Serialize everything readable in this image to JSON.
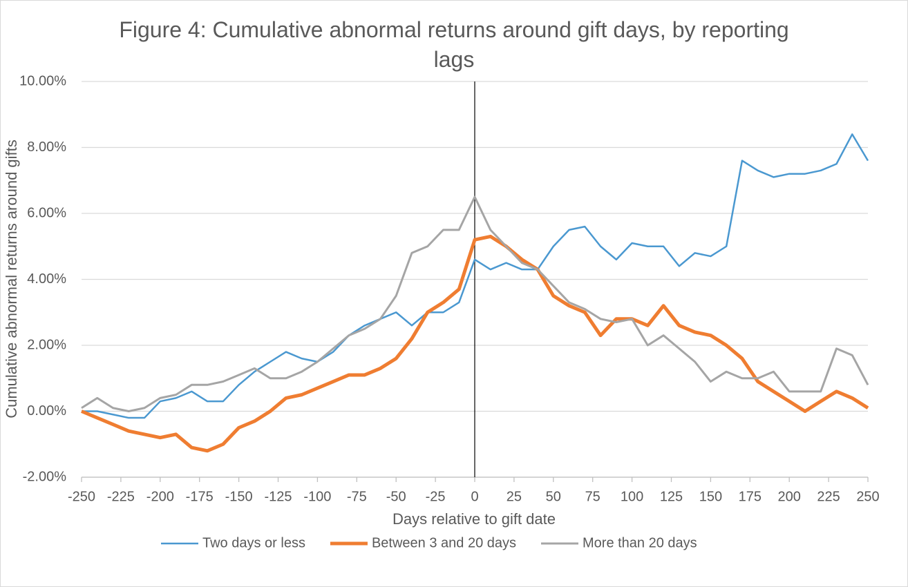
{
  "chart_data": {
    "type": "line",
    "title": "Figure 4:  Cumulative abnormal returns around gift days, by reporting lags",
    "xlabel": "Days relative to gift date",
    "ylabel": "Cumulative abnormal returns around gifts",
    "x": [
      -250,
      -240,
      -230,
      -220,
      -210,
      -200,
      -190,
      -180,
      -170,
      -160,
      -150,
      -140,
      -130,
      -120,
      -110,
      -100,
      -90,
      -80,
      -70,
      -60,
      -50,
      -40,
      -30,
      -20,
      -10,
      0,
      10,
      20,
      30,
      40,
      50,
      60,
      70,
      80,
      90,
      100,
      110,
      120,
      130,
      140,
      150,
      160,
      170,
      180,
      190,
      200,
      210,
      220,
      230,
      240,
      250
    ],
    "series": [
      {
        "name": "Two days or less",
        "color": "#4a98d0",
        "values": [
          0,
          0,
          -0.1,
          -0.2,
          -0.2,
          0.3,
          0.4,
          0.6,
          0.3,
          0.3,
          0.8,
          1.2,
          1.5,
          1.8,
          1.6,
          1.5,
          1.8,
          2.3,
          2.6,
          2.8,
          3.0,
          2.6,
          3.0,
          3.0,
          3.3,
          4.6,
          4.3,
          4.5,
          4.3,
          4.3,
          5.0,
          5.5,
          5.6,
          5.0,
          4.6,
          5.1,
          5.0,
          5.0,
          4.4,
          4.8,
          4.7,
          5.0,
          7.6,
          7.3,
          7.1,
          7.2,
          7.2,
          7.3,
          7.5,
          8.4,
          7.6
        ]
      },
      {
        "name": "Between 3 and 20 days",
        "color": "#ef7d31",
        "values": [
          0,
          -0.2,
          -0.4,
          -0.6,
          -0.7,
          -0.8,
          -0.7,
          -1.1,
          -1.2,
          -1.0,
          -0.5,
          -0.3,
          0,
          0.4,
          0.5,
          0.7,
          0.9,
          1.1,
          1.1,
          1.3,
          1.6,
          2.2,
          3.0,
          3.3,
          3.7,
          5.2,
          5.3,
          5.0,
          4.6,
          4.3,
          3.5,
          3.2,
          3.0,
          2.3,
          2.8,
          2.8,
          2.6,
          3.2,
          2.6,
          2.4,
          2.3,
          2.0,
          1.6,
          0.9,
          0.6,
          0.3,
          0.0,
          0.3,
          0.6,
          0.4,
          0.1
        ]
      },
      {
        "name": "More than 20 days",
        "color": "#a5a5a5",
        "values": [
          0.1,
          0.4,
          0.1,
          0,
          0.1,
          0.4,
          0.5,
          0.8,
          0.8,
          0.9,
          1.1,
          1.3,
          1.0,
          1.0,
          1.2,
          1.5,
          1.9,
          2.3,
          2.5,
          2.8,
          3.5,
          4.8,
          5.0,
          5.5,
          5.5,
          6.5,
          5.5,
          5.0,
          4.5,
          4.3,
          3.8,
          3.3,
          3.1,
          2.8,
          2.7,
          2.8,
          2.0,
          2.3,
          1.9,
          1.5,
          0.9,
          1.2,
          1.0,
          1.0,
          1.2,
          0.6,
          0.6,
          0.6,
          1.9,
          1.7,
          0.8
        ]
      }
    ],
    "xlim": [
      -250,
      250
    ],
    "xticks": [
      -250,
      -225,
      -200,
      -175,
      -150,
      -125,
      -100,
      -75,
      -50,
      -25,
      0,
      25,
      50,
      75,
      100,
      125,
      150,
      175,
      200,
      225,
      250
    ],
    "ylim": [
      -2,
      10
    ],
    "yticks": [
      {
        "value": -2,
        "label": "-2.00%"
      },
      {
        "value": 0,
        "label": "0.00%"
      },
      {
        "value": 2,
        "label": "2.00%"
      },
      {
        "value": 4,
        "label": "4.00%"
      },
      {
        "value": 6,
        "label": "6.00%"
      },
      {
        "value": 8,
        "label": "8.00%"
      },
      {
        "value": 10,
        "label": "10.00%"
      }
    ],
    "vline": 0,
    "grid": true,
    "legend": "bottom"
  }
}
